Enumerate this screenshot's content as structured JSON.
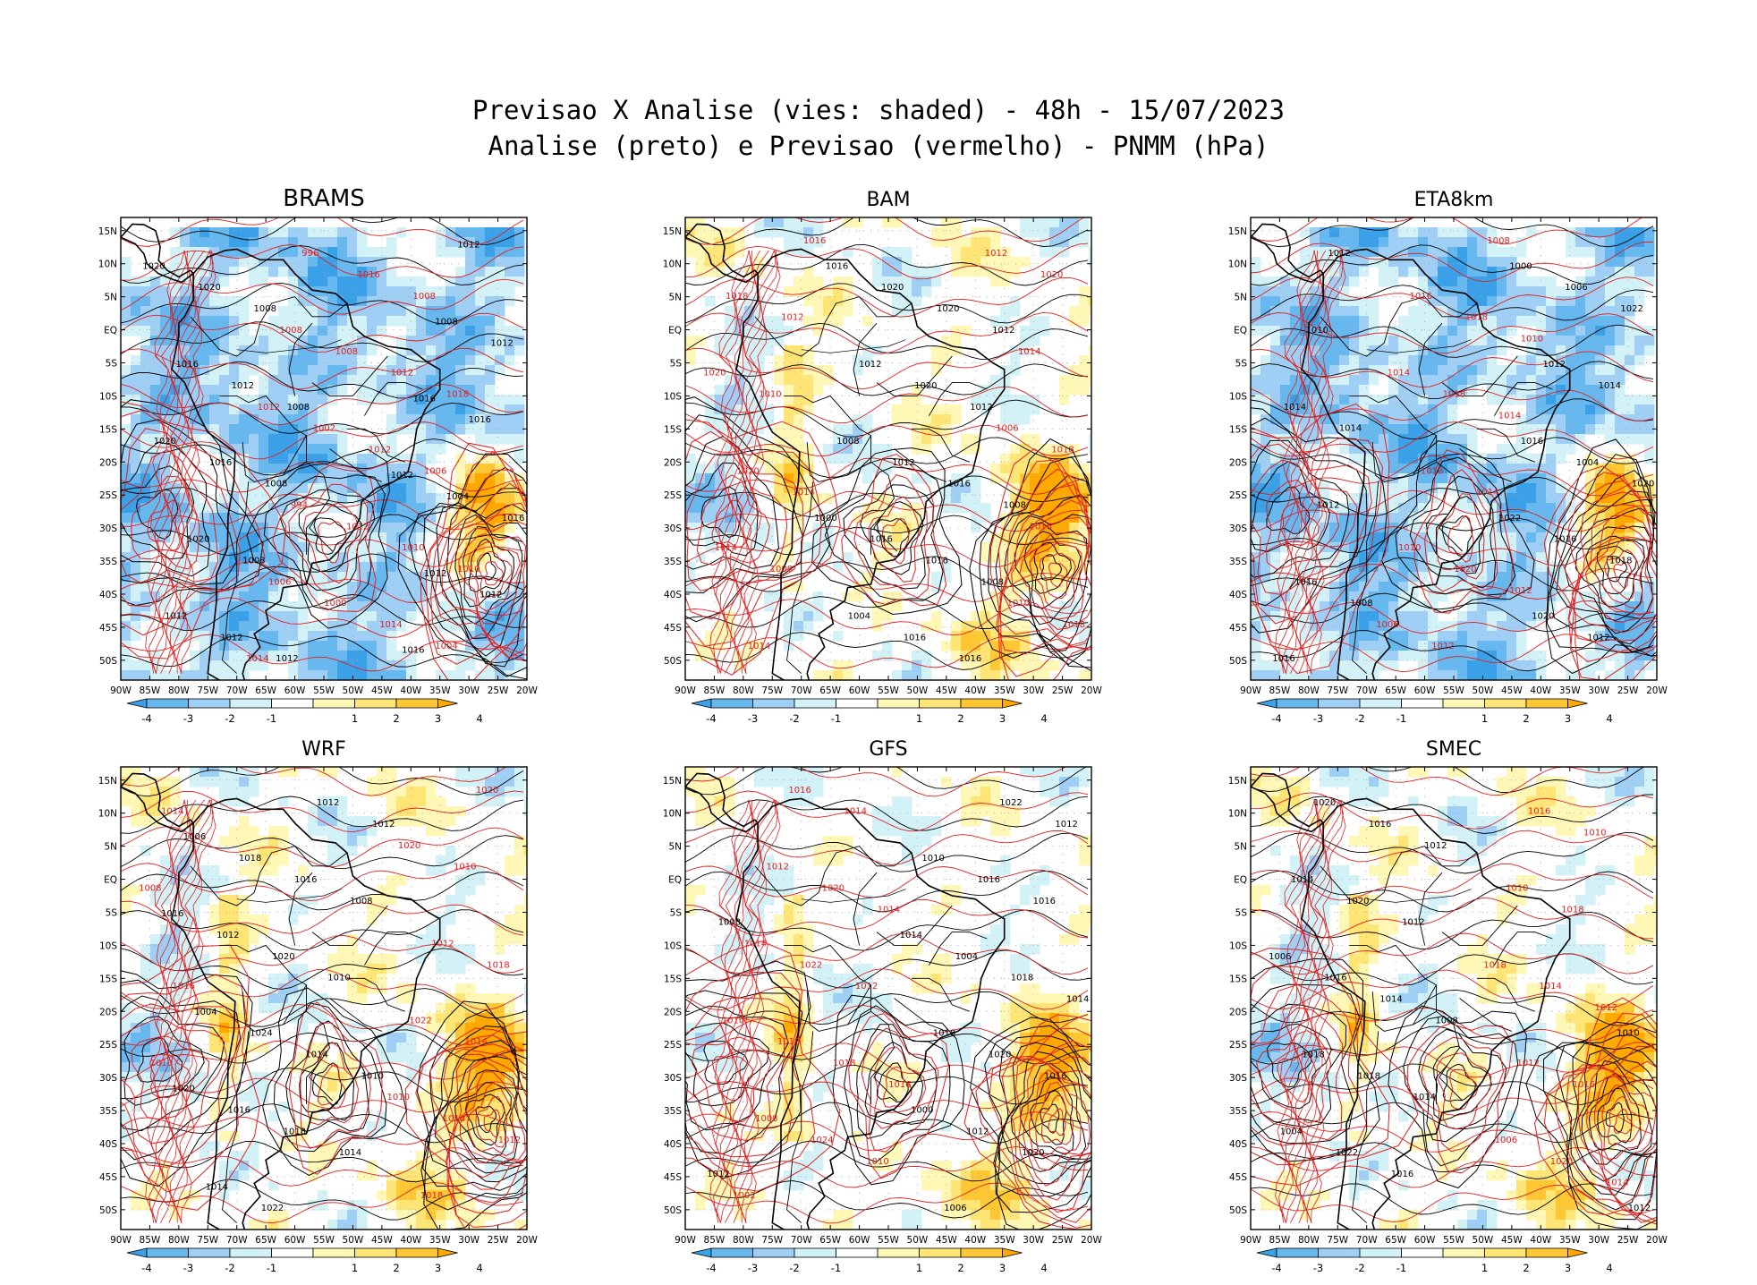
{
  "header": {
    "line1": "Previsao X Analise (vies: shaded) - 48h - 15/07/2023",
    "line2": "Analise (preto) e Previsao (vermelho) - PNMM (hPa)"
  },
  "axes": {
    "lat_labels": [
      "15N",
      "10N",
      "5N",
      "EQ",
      "5S",
      "10S",
      "15S",
      "20S",
      "25S",
      "30S",
      "35S",
      "40S",
      "45S",
      "50S"
    ],
    "lon_labels": [
      "90W",
      "85W",
      "80W",
      "75W",
      "70W",
      "65W",
      "60W",
      "55W",
      "50W",
      "45W",
      "40W",
      "35W",
      "30W",
      "25W",
      "20W"
    ],
    "lon_range": [
      -90,
      -20
    ],
    "lat_range": [
      -53,
      17
    ]
  },
  "colorbar": {
    "labels": [
      "-4",
      "-3",
      "-2",
      "-1",
      "1",
      "2",
      "3",
      "4"
    ],
    "colors": [
      "#3aa0e8",
      "#68b8f0",
      "#a0cff5",
      "#d2f2f8",
      "#ffffff",
      "#fff7b5",
      "#ffe476",
      "#ffc733",
      "#ffa800"
    ]
  },
  "colors": {
    "analysis_contour": "#000000",
    "forecast_contour": "#e02020",
    "coast": "#000000",
    "grid_dot": "#a8a8a8"
  },
  "panels": [
    {
      "title": "BRAMS",
      "bias": "negative",
      "labels_black": [
        "1008",
        "1012",
        "1008",
        "1008",
        "1008",
        "1012",
        "1012",
        "1016",
        "1020",
        "1020",
        "1016",
        "1012",
        "1020",
        "1020",
        "1016",
        "1012",
        "1012",
        "1016",
        "1012",
        "1004",
        "1008",
        "1012",
        "1016",
        "1016",
        "1012"
      ],
      "labels_red": [
        "1010",
        "1018",
        "1004",
        "1006",
        "1008",
        "1010",
        "1012",
        "1014",
        "1012",
        "1016",
        "1012",
        "1008",
        "1000",
        "1002",
        "996",
        "994",
        "1008",
        "1006",
        "1012",
        "1014"
      ]
    },
    {
      "title": "BAM",
      "bias": "mixed",
      "labels_black": [
        "1008",
        "1012",
        "1008",
        "1012",
        "1016",
        "1016",
        "1020",
        "1016",
        "1020",
        "1016",
        "1012",
        "1020",
        "1016",
        "1012",
        "1004",
        "1008",
        "1016",
        "1000"
      ],
      "labels_red": [
        "1016",
        "1014",
        "1012",
        "1008",
        "1010",
        "1014",
        "1020",
        "1018",
        "1014",
        "1020",
        "1018",
        "1018",
        "1020",
        "1016",
        "1014",
        "1010",
        "1006",
        "1012"
      ]
    },
    {
      "title": "ETA8km",
      "bias": "negative",
      "labels_black": [
        "1008",
        "1014",
        "1012",
        "1012",
        "1010",
        "1016",
        "1014",
        "1016",
        "1020",
        "1022",
        "1018",
        "1014",
        "1012",
        "1004",
        "1006",
        "1016",
        "1012",
        "1020",
        "1016",
        "1000",
        "1022"
      ],
      "labels_red": [
        "1010",
        "1012",
        "1014",
        "1008",
        "1014",
        "1018",
        "1020",
        "1018",
        "1012",
        "1018",
        "1016",
        "1010",
        "1014",
        "1006"
      ]
    },
    {
      "title": "WRF",
      "bias": "mixed",
      "labels_black": [
        "1012",
        "1010",
        "1008",
        "1014",
        "1010",
        "1012",
        "1014",
        "1016",
        "1018",
        "1020",
        "1022",
        "1024",
        "1018",
        "1016",
        "1012",
        "1014",
        "1004",
        "1006",
        "1020",
        "1016"
      ],
      "labels_red": [
        "1016",
        "1014",
        "1010",
        "1008",
        "1012",
        "1018",
        "1020",
        "1014",
        "1010",
        "1016",
        "1012",
        "1018",
        "1022",
        "1020",
        "1010"
      ]
    },
    {
      "title": "GFS",
      "bias": "positive",
      "labels_black": [
        "1008",
        "1012",
        "1014",
        "1012",
        "1016",
        "1016",
        "1020",
        "1018",
        "1022",
        "1020",
        "1016",
        "1012",
        "1004",
        "1006",
        "1018",
        "1010",
        "1000",
        "1014"
      ],
      "labels_red": [
        "1016",
        "1014",
        "1010",
        "1012",
        "1014",
        "1018",
        "1020",
        "1024",
        "1022",
        "1016",
        "1018",
        "1012",
        "1008",
        "1014",
        "1002",
        "1010"
      ]
    },
    {
      "title": "SMEC",
      "bias": "mixed",
      "labels_black": [
        "1008",
        "1012",
        "1014",
        "1012",
        "1016",
        "1014",
        "1016",
        "1018",
        "1020",
        "1022",
        "1016",
        "1020",
        "1018",
        "1014",
        "1004",
        "1006",
        "1012",
        "1010"
      ],
      "labels_red": [
        "1014",
        "1012",
        "1010",
        "1016",
        "1018",
        "1020",
        "1014",
        "1016",
        "1012",
        "1010",
        "1006",
        "1018"
      ]
    }
  ]
}
